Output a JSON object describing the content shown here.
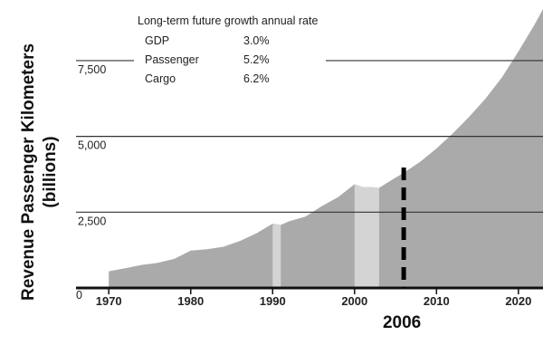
{
  "chart_data": {
    "type": "area",
    "ylabel_line1": "Revenue Passenger Kilometers",
    "ylabel_line2": "(billions)",
    "ylim": [
      0,
      9500
    ],
    "xlim": [
      1966,
      2023
    ],
    "grid": "horizontal",
    "y_ticks": [
      {
        "value": 0,
        "label": "0"
      },
      {
        "value": 2500,
        "label": "2,500"
      },
      {
        "value": 5000,
        "label": "5,000"
      },
      {
        "value": 7500,
        "label": "7,500"
      }
    ],
    "x_ticks": [
      {
        "value": 1970,
        "label": "1970"
      },
      {
        "value": 1980,
        "label": "1980"
      },
      {
        "value": 1990,
        "label": "1990"
      },
      {
        "value": 2000,
        "label": "2000"
      },
      {
        "value": 2010,
        "label": "2010"
      },
      {
        "value": 2020,
        "label": "2020"
      }
    ],
    "series": [
      {
        "values": [
          [
            1970,
            550
          ],
          [
            1972,
            650
          ],
          [
            1974,
            760
          ],
          [
            1976,
            830
          ],
          [
            1978,
            960
          ],
          [
            1980,
            1230
          ],
          [
            1982,
            1280
          ],
          [
            1984,
            1360
          ],
          [
            1986,
            1550
          ],
          [
            1988,
            1800
          ],
          [
            1990,
            2120
          ],
          [
            1991,
            2080
          ],
          [
            1992,
            2200
          ],
          [
            1994,
            2350
          ],
          [
            1996,
            2700
          ],
          [
            1998,
            3000
          ],
          [
            2000,
            3420
          ],
          [
            2001,
            3330
          ],
          [
            2002,
            3330
          ],
          [
            2003,
            3300
          ],
          [
            2004,
            3470
          ],
          [
            2006,
            3800
          ],
          [
            2008,
            4160
          ],
          [
            2010,
            4600
          ],
          [
            2012,
            5100
          ],
          [
            2014,
            5650
          ],
          [
            2016,
            6250
          ],
          [
            2018,
            6950
          ],
          [
            2020,
            7800
          ],
          [
            2022,
            8700
          ],
          [
            2023,
            9200
          ]
        ],
        "color": "#aaaaaa"
      }
    ],
    "highlight_spans": [
      {
        "from": 1990,
        "to": 1991,
        "color": "#d4d4d4"
      },
      {
        "from": 2000,
        "to": 2003,
        "color": "#d4d4d4"
      }
    ],
    "annotation": {
      "x": 2006,
      "label": "2006",
      "style": "dashed vertical line"
    },
    "legend": {
      "title": "Long-term future growth annual rate",
      "placement": "top-left",
      "items": [
        {
          "name": "GDP",
          "value": "3.0%"
        },
        {
          "name": "Passenger",
          "value": "5.2%"
        },
        {
          "name": "Cargo",
          "value": "6.2%"
        }
      ]
    }
  }
}
